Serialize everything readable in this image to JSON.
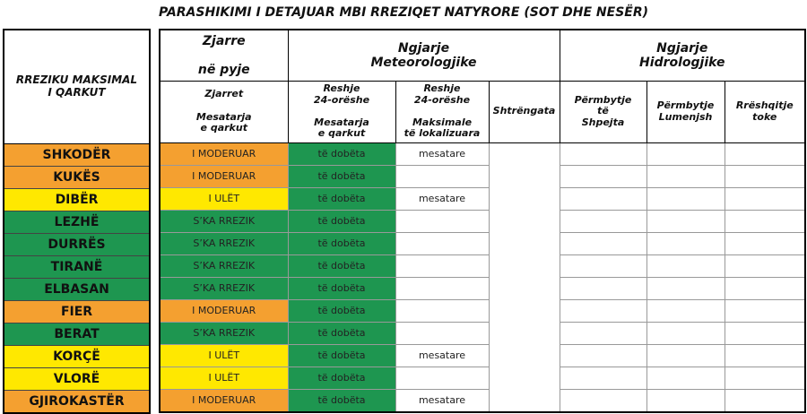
{
  "title": "PARASHIKIMI I DETAJUAR MBI RREZIQET NATYRORE   (SOT DHE NESËR)",
  "headers": {
    "region": "RREZIKU MAKSIMAL\nI  QARKUT",
    "fire_group": "Zjarre\n\nnë pyje",
    "meteo_group": "Ngjarje\nMeteorologjike",
    "hydro_group": "Ngjarje\nHidrologjike",
    "fire": "Zjarret\n\nMesatarja\ne qarkut",
    "rain_avg": "Reshje\n24-orëshe\n\nMesatarja\ne qarkut",
    "rain_max": "Reshje\n24-orëshe\n\nMaksimale\ntë lokalizuara",
    "storm": "Shtrëngata",
    "flash_flood": "Përmbytje\ntë\nShpejta",
    "river_flood": "Përmbytje\nLumenjsh",
    "landslide": "Rrëshqitje\ntoke"
  },
  "colors": {
    "I MODERUAR": "#f4a030",
    "I ULËT": "#ffe800",
    "S'KA RREZIK": "#1e9650"
  },
  "rows": [
    {
      "region": "SHKODËR",
      "fire": "I MODERUAR",
      "rain_avg": "të dobëta",
      "rain_max": "mesatare"
    },
    {
      "region": "KUKËS",
      "fire": "I MODERUAR",
      "rain_avg": "të dobëta",
      "rain_max": ""
    },
    {
      "region": "DIBËR",
      "fire": "I ULËT",
      "rain_avg": "të dobëta",
      "rain_max": "mesatare"
    },
    {
      "region": "LEZHË",
      "fire": "S’KA RREZIK",
      "rain_avg": "të dobëta",
      "rain_max": ""
    },
    {
      "region": "DURRËS",
      "fire": "S’KA RREZIK",
      "rain_avg": "të dobëta",
      "rain_max": ""
    },
    {
      "region": "TIRANË",
      "fire": "S’KA RREZIK",
      "rain_avg": "të dobëta",
      "rain_max": ""
    },
    {
      "region": "ELBASAN",
      "fire": "S’KA RREZIK",
      "rain_avg": "të dobëta",
      "rain_max": ""
    },
    {
      "region": "FIER",
      "fire": "I MODERUAR",
      "rain_avg": "të dobëta",
      "rain_max": ""
    },
    {
      "region": "BERAT",
      "fire": "S’KA RREZIK",
      "rain_avg": "të dobëta",
      "rain_max": ""
    },
    {
      "region": "KORÇË",
      "fire": "I ULËT",
      "rain_avg": "të dobëta",
      "rain_max": "mesatare"
    },
    {
      "region": "VLORË",
      "fire": "I ULËT",
      "rain_avg": "të dobëta",
      "rain_max": ""
    },
    {
      "region": "GJIROKASTËR",
      "fire": "I MODERUAR",
      "rain_avg": "të dobëta",
      "rain_max": "mesatare"
    }
  ]
}
